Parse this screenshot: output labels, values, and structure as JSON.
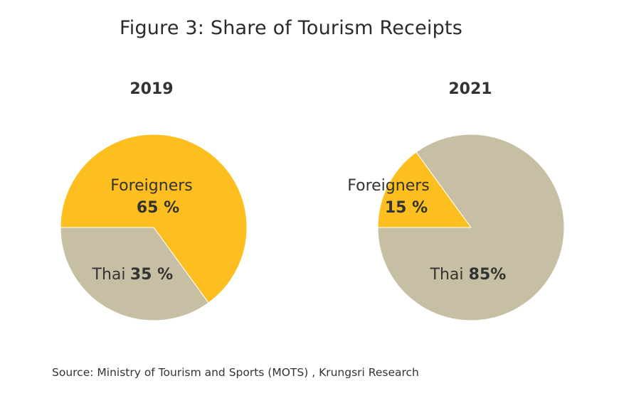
{
  "title": "Figure 3: Share of Tourism Receipts",
  "source": "Source: Ministry of Tourism and Sports (MOTS) , Krungsri Research",
  "colors": {
    "foreigners": "#FDBF1F",
    "thai": "#C7BFA3"
  },
  "chart_data": [
    {
      "type": "pie",
      "title": "2019",
      "slices": [
        {
          "category": "Foreigners",
          "value": 65,
          "value_label": "65 %",
          "color": "#FDBF1F"
        },
        {
          "category": "Thai",
          "value": 35,
          "value_label": "35 %",
          "color": "#C7BFA3"
        }
      ]
    },
    {
      "type": "pie",
      "title": "2021",
      "slices": [
        {
          "category": "Foreigners",
          "value": 15,
          "value_label": "15 %",
          "color": "#FDBF1F"
        },
        {
          "category": "Thai",
          "value": 85,
          "value_label": "85%",
          "color": "#C7BFA3"
        }
      ]
    }
  ]
}
